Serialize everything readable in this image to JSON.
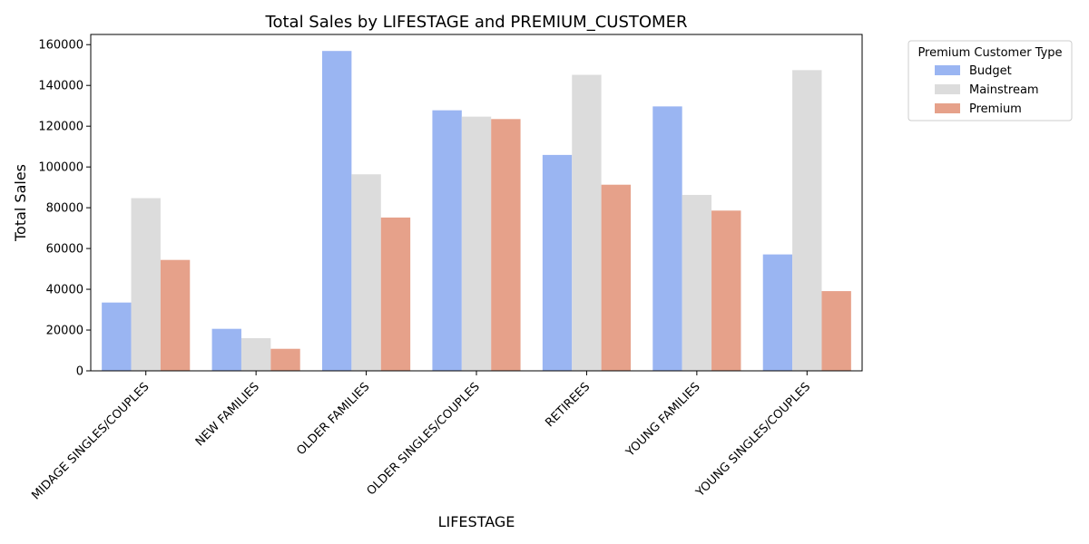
{
  "chart_data": {
    "type": "bar",
    "title": "Total Sales by LIFESTAGE and PREMIUM_CUSTOMER",
    "xlabel": "LIFESTAGE",
    "ylabel": "Total Sales",
    "categories": [
      "MIDAGE SINGLES/COUPLES",
      "NEW FAMILIES",
      "OLDER FAMILIES",
      "OLDER SINGLES/COUPLES",
      "RETIREES",
      "YOUNG FAMILIES",
      "YOUNG SINGLES/COUPLES"
    ],
    "series": [
      {
        "name": "Budget",
        "color": "#9ab5f2",
        "values": [
          33500,
          20600,
          156900,
          127800,
          105900,
          129700,
          57100
        ]
      },
      {
        "name": "Mainstream",
        "color": "#dcdcdc",
        "values": [
          84700,
          16000,
          96400,
          124700,
          145200,
          86300,
          147500
        ]
      },
      {
        "name": "Premium",
        "color": "#e6a18a",
        "values": [
          54400,
          10800,
          75200,
          123500,
          91300,
          78600,
          39100
        ]
      }
    ],
    "ylim": [
      0,
      165000
    ],
    "yticks": [
      "0",
      "20000",
      "40000",
      "60000",
      "80000",
      "100000",
      "120000",
      "140000",
      "160000"
    ],
    "legend": {
      "title": "Premium Customer Type",
      "placement": "outside-upper-right"
    },
    "grid": false
  }
}
